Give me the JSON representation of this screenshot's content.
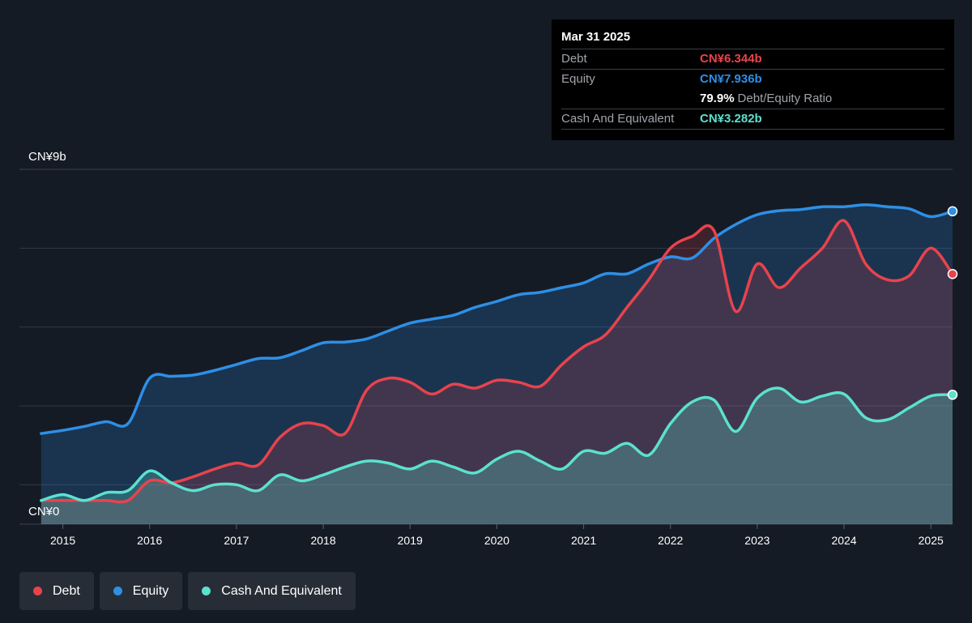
{
  "chart_data": {
    "type": "area",
    "currency": "CN¥",
    "y_axis": {
      "top_label": "CN¥9b",
      "bottom_label": "CN¥0",
      "ylim": [
        0,
        9
      ]
    },
    "x_ticks": [
      "2015",
      "2016",
      "2017",
      "2018",
      "2019",
      "2020",
      "2021",
      "2022",
      "2023",
      "2024",
      "2025"
    ],
    "xlim": [
      2014.5,
      2025.25
    ],
    "series": [
      {
        "name": "Equity",
        "color": "#2e8fe6",
        "points": [
          [
            2014.75,
            2.3
          ],
          [
            2015.0,
            2.38
          ],
          [
            2015.25,
            2.48
          ],
          [
            2015.5,
            2.6
          ],
          [
            2015.75,
            2.55
          ],
          [
            2016.0,
            3.7
          ],
          [
            2016.25,
            3.75
          ],
          [
            2016.5,
            3.78
          ],
          [
            2016.75,
            3.9
          ],
          [
            2017.0,
            4.05
          ],
          [
            2017.25,
            4.2
          ],
          [
            2017.5,
            4.22
          ],
          [
            2017.75,
            4.4
          ],
          [
            2018.0,
            4.6
          ],
          [
            2018.25,
            4.62
          ],
          [
            2018.5,
            4.7
          ],
          [
            2018.75,
            4.9
          ],
          [
            2019.0,
            5.1
          ],
          [
            2019.25,
            5.2
          ],
          [
            2019.5,
            5.3
          ],
          [
            2019.75,
            5.5
          ],
          [
            2020.0,
            5.65
          ],
          [
            2020.25,
            5.82
          ],
          [
            2020.5,
            5.88
          ],
          [
            2020.75,
            6.0
          ],
          [
            2021.0,
            6.12
          ],
          [
            2021.25,
            6.35
          ],
          [
            2021.5,
            6.35
          ],
          [
            2021.75,
            6.6
          ],
          [
            2022.0,
            6.78
          ],
          [
            2022.25,
            6.75
          ],
          [
            2022.5,
            7.25
          ],
          [
            2022.75,
            7.6
          ],
          [
            2023.0,
            7.85
          ],
          [
            2023.25,
            7.95
          ],
          [
            2023.5,
            7.98
          ],
          [
            2023.75,
            8.05
          ],
          [
            2024.0,
            8.05
          ],
          [
            2024.25,
            8.1
          ],
          [
            2024.5,
            8.05
          ],
          [
            2024.75,
            8.0
          ],
          [
            2025.0,
            7.8
          ],
          [
            2025.25,
            7.936
          ]
        ]
      },
      {
        "name": "Debt",
        "color": "#e8434d",
        "points": [
          [
            2014.75,
            0.6
          ],
          [
            2015.0,
            0.6
          ],
          [
            2015.25,
            0.6
          ],
          [
            2015.5,
            0.6
          ],
          [
            2015.75,
            0.6
          ],
          [
            2016.0,
            1.1
          ],
          [
            2016.25,
            1.05
          ],
          [
            2016.5,
            1.2
          ],
          [
            2016.75,
            1.4
          ],
          [
            2017.0,
            1.55
          ],
          [
            2017.25,
            1.5
          ],
          [
            2017.5,
            2.2
          ],
          [
            2017.75,
            2.55
          ],
          [
            2018.0,
            2.5
          ],
          [
            2018.25,
            2.3
          ],
          [
            2018.5,
            3.4
          ],
          [
            2018.75,
            3.7
          ],
          [
            2019.0,
            3.6
          ],
          [
            2019.25,
            3.3
          ],
          [
            2019.5,
            3.55
          ],
          [
            2019.75,
            3.45
          ],
          [
            2020.0,
            3.65
          ],
          [
            2020.25,
            3.6
          ],
          [
            2020.5,
            3.5
          ],
          [
            2020.75,
            4.05
          ],
          [
            2021.0,
            4.5
          ],
          [
            2021.25,
            4.8
          ],
          [
            2021.5,
            5.5
          ],
          [
            2021.75,
            6.2
          ],
          [
            2022.0,
            7.0
          ],
          [
            2022.25,
            7.3
          ],
          [
            2022.5,
            7.45
          ],
          [
            2022.75,
            5.4
          ],
          [
            2023.0,
            6.6
          ],
          [
            2023.25,
            6.0
          ],
          [
            2023.5,
            6.5
          ],
          [
            2023.75,
            7.0
          ],
          [
            2024.0,
            7.7
          ],
          [
            2024.25,
            6.6
          ],
          [
            2024.5,
            6.2
          ],
          [
            2024.75,
            6.3
          ],
          [
            2025.0,
            7.0
          ],
          [
            2025.25,
            6.344
          ]
        ]
      },
      {
        "name": "Cash And Equivalent",
        "color": "#5ce1cf",
        "points": [
          [
            2014.75,
            0.6
          ],
          [
            2015.0,
            0.75
          ],
          [
            2015.25,
            0.6
          ],
          [
            2015.5,
            0.8
          ],
          [
            2015.75,
            0.85
          ],
          [
            2016.0,
            1.35
          ],
          [
            2016.25,
            1.05
          ],
          [
            2016.5,
            0.85
          ],
          [
            2016.75,
            1.0
          ],
          [
            2017.0,
            1.0
          ],
          [
            2017.25,
            0.85
          ],
          [
            2017.5,
            1.25
          ],
          [
            2017.75,
            1.1
          ],
          [
            2018.0,
            1.25
          ],
          [
            2018.25,
            1.45
          ],
          [
            2018.5,
            1.6
          ],
          [
            2018.75,
            1.55
          ],
          [
            2019.0,
            1.4
          ],
          [
            2019.25,
            1.6
          ],
          [
            2019.5,
            1.45
          ],
          [
            2019.75,
            1.3
          ],
          [
            2020.0,
            1.65
          ],
          [
            2020.25,
            1.85
          ],
          [
            2020.5,
            1.6
          ],
          [
            2020.75,
            1.4
          ],
          [
            2021.0,
            1.85
          ],
          [
            2021.25,
            1.8
          ],
          [
            2021.5,
            2.05
          ],
          [
            2021.75,
            1.75
          ],
          [
            2022.0,
            2.55
          ],
          [
            2022.25,
            3.1
          ],
          [
            2022.5,
            3.15
          ],
          [
            2022.75,
            2.35
          ],
          [
            2023.0,
            3.2
          ],
          [
            2023.25,
            3.45
          ],
          [
            2023.5,
            3.1
          ],
          [
            2023.75,
            3.25
          ],
          [
            2024.0,
            3.3
          ],
          [
            2024.25,
            2.7
          ],
          [
            2024.5,
            2.65
          ],
          [
            2024.75,
            2.95
          ],
          [
            2025.0,
            3.25
          ],
          [
            2025.25,
            3.282
          ]
        ]
      }
    ],
    "tooltip": {
      "date": "Mar 31 2025",
      "debt_label": "Debt",
      "debt_value": "CN¥6.344b",
      "equity_label": "Equity",
      "equity_value": "CN¥7.936b",
      "ratio_value": "79.9%",
      "ratio_label": "Debt/Equity Ratio",
      "cash_label": "Cash And Equivalent",
      "cash_value": "CN¥3.282b"
    },
    "legend": [
      {
        "name": "Debt",
        "color": "#e8434d"
      },
      {
        "name": "Equity",
        "color": "#2e8fe6"
      },
      {
        "name": "Cash And Equivalent",
        "color": "#5ce1cf"
      }
    ]
  }
}
